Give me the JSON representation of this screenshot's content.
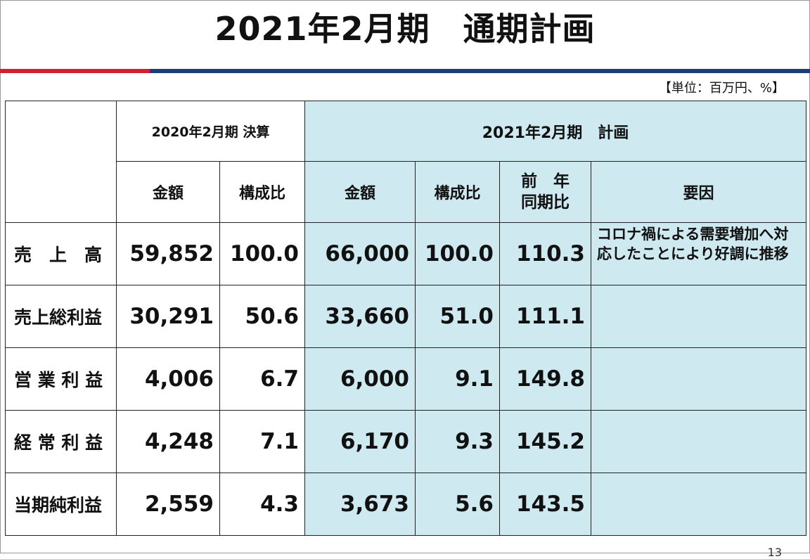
{
  "title": "2021年2月期　通期計画",
  "unit_note": "【単位：百万円、%】",
  "header": {
    "prev_period": "2020年2月期 決算",
    "plan_period": "2021年2月期　計画",
    "amount": "金額",
    "composition": "構成比",
    "yoy_line1": "前　年",
    "yoy_line2": "同期比",
    "factor": "要因"
  },
  "rows": [
    {
      "label": "売　上　高",
      "prev_amount": "59,852",
      "prev_ratio": "100.0",
      "plan_amount": "66,000",
      "plan_ratio": "100.0",
      "yoy": "110.3",
      "factor": "コロナ禍による需要増加へ対応したことにより好調に推移"
    },
    {
      "label": "売上総利益",
      "prev_amount": "30,291",
      "prev_ratio": "50.6",
      "plan_amount": "33,660",
      "plan_ratio": "51.0",
      "yoy": "111.1",
      "factor": ""
    },
    {
      "label": "営 業 利 益",
      "prev_amount": "4,006",
      "prev_ratio": "6.7",
      "plan_amount": "6,000",
      "plan_ratio": "9.1",
      "yoy": "149.8",
      "factor": ""
    },
    {
      "label": "経 常 利 益",
      "prev_amount": "4,248",
      "prev_ratio": "7.1",
      "plan_amount": "6,170",
      "plan_ratio": "9.3",
      "yoy": "145.2",
      "factor": ""
    },
    {
      "label": "当期純利益",
      "prev_amount": "2,559",
      "prev_ratio": "4.3",
      "plan_amount": "3,673",
      "plan_ratio": "5.6",
      "yoy": "143.5",
      "factor": ""
    }
  ],
  "page_number": "13",
  "colors": {
    "accent_red": "#d21f35",
    "accent_blue": "#1f3c7a",
    "plan_fill": "#cfe9f1"
  }
}
